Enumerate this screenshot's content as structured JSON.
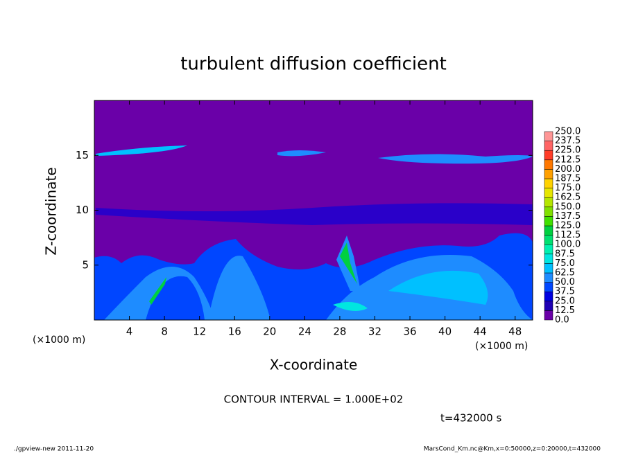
{
  "chart_data": {
    "type": "contour",
    "title": "turbulent diffusion coefficient",
    "x_label": "X-coordinate",
    "y_label": "Z-coordinate",
    "x_unit_label": "(×1000 m)",
    "y_unit_label": "(×1000 m)",
    "xlim": [
      0,
      50
    ],
    "xticks": [
      4,
      8,
      12,
      16,
      20,
      24,
      28,
      32,
      36,
      40,
      44,
      48
    ],
    "ylim": [
      0,
      20
    ],
    "yticks": [
      5,
      10,
      15
    ],
    "background_color": "#6a00a8",
    "colorbar": {
      "levels": [
        {
          "value": 0,
          "label": "0.0"
        },
        {
          "value": 12.5,
          "label": "12.5"
        },
        {
          "value": 25,
          "label": "25.0"
        },
        {
          "value": 37.5,
          "label": "37.5"
        },
        {
          "value": 50,
          "label": "50.0"
        },
        {
          "value": 62.5,
          "label": "62.5"
        },
        {
          "value": 75,
          "label": "75.0"
        },
        {
          "value": 87.5,
          "label": "87.5"
        },
        {
          "value": 100,
          "label": "100.0"
        },
        {
          "value": 112.5,
          "label": "112.5"
        },
        {
          "value": 125,
          "label": "125.0"
        },
        {
          "value": 137.5,
          "label": "137.5"
        },
        {
          "value": 150,
          "label": "150.0"
        },
        {
          "value": 162.5,
          "label": "162.5"
        },
        {
          "value": 175,
          "label": "175.0"
        },
        {
          "value": 187.5,
          "label": "187.5"
        },
        {
          "value": 200,
          "label": "200.0"
        },
        {
          "value": 212.5,
          "label": "212.5"
        },
        {
          "value": 225,
          "label": "225.0"
        },
        {
          "value": 237.5,
          "label": "237.5"
        },
        {
          "value": 250,
          "label": "250.0"
        }
      ],
      "colors": [
        "#6a00a8",
        "#1e00b4",
        "#0000e0",
        "#0046ff",
        "#1e8cff",
        "#00c0ff",
        "#00e6e0",
        "#00f0b0",
        "#00e070",
        "#00d040",
        "#40e000",
        "#80e000",
        "#b4e600",
        "#e6e600",
        "#ffd200",
        "#ffa000",
        "#ff7800",
        "#ff3c28",
        "#ff6464",
        "#ff9696"
      ]
    },
    "contour_interval": "CONTOUR INTERVAL = 1.000E+02",
    "time_label": "t=432000 s"
  },
  "footer": {
    "left": "./gpview-new   2011-11-20",
    "right": "MarsCond_Km.nc@Km,x=0:50000,z=0:20000,t=432000"
  }
}
